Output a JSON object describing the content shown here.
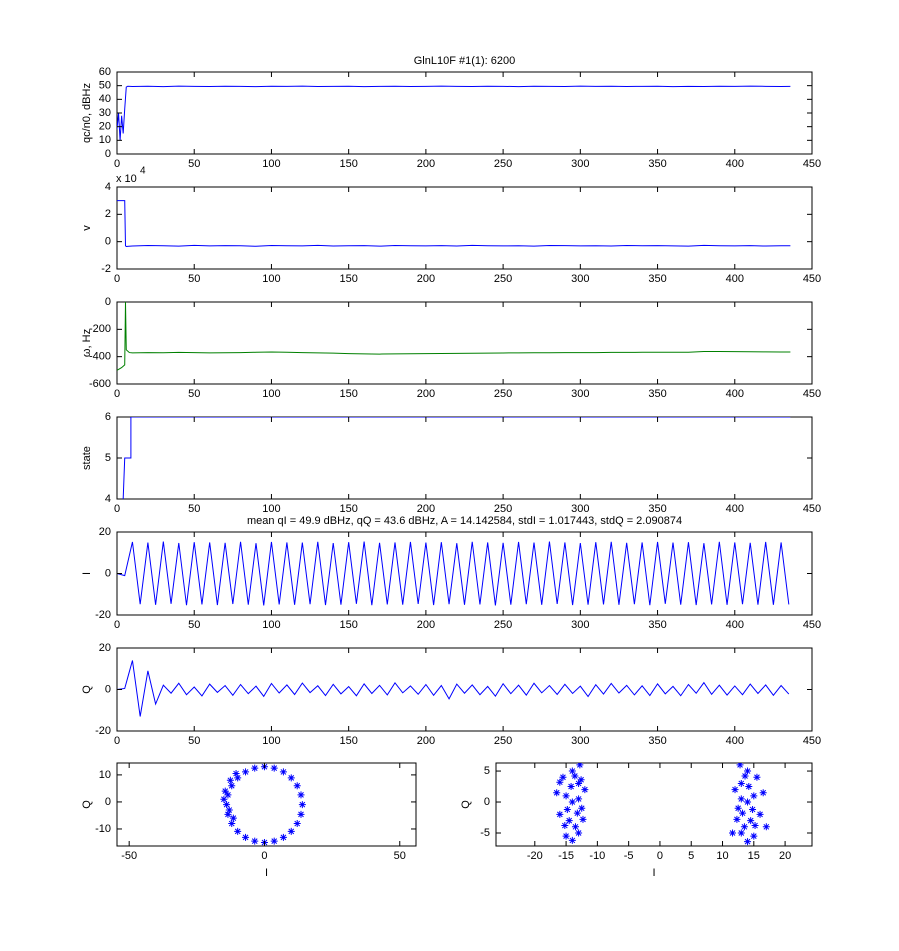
{
  "chart_data": [
    {
      "type": "line",
      "title": "GlnL10F #1(1): 6200",
      "ylabel": "qc/n0, dBHz",
      "color": "#0000ff",
      "xlim": [
        0,
        450
      ],
      "ylim": [
        0,
        60
      ],
      "xticks": [
        0,
        50,
        100,
        150,
        200,
        250,
        300,
        350,
        400,
        450
      ],
      "yticks": [
        0,
        10,
        20,
        30,
        40,
        50,
        60
      ],
      "x": [
        0,
        1,
        2,
        3,
        4,
        5,
        6,
        7,
        10,
        20,
        30,
        40,
        50,
        60,
        70,
        80,
        90,
        100,
        110,
        120,
        130,
        140,
        150,
        160,
        170,
        180,
        190,
        200,
        210,
        220,
        230,
        240,
        250,
        260,
        270,
        280,
        290,
        300,
        310,
        320,
        330,
        340,
        350,
        360,
        370,
        380,
        390,
        400,
        410,
        420,
        430,
        436
      ],
      "values": [
        18,
        30,
        10,
        28,
        15,
        33,
        49,
        49.6,
        49.4,
        49.6,
        49.3,
        49.7,
        49.5,
        49.4,
        49.6,
        49.5,
        49.3,
        49.6,
        49.5,
        49.7,
        49.4,
        49.5,
        49.6,
        49.3,
        49.5,
        49.6,
        49.4,
        49.5,
        49.7,
        49.5,
        49.4,
        49.6,
        49.5,
        49.3,
        49.6,
        49.5,
        49.4,
        49.7,
        49.5,
        49.6,
        49.4,
        49.5,
        49.6,
        49.3,
        49.5,
        49.4,
        49.6,
        49.5,
        49.7,
        49.5,
        49.4,
        49.5
      ]
    },
    {
      "type": "line",
      "ylabel": "v",
      "exponent_label": "x 10",
      "exponent": "4",
      "color": "#0000ff",
      "xlim": [
        0,
        450
      ],
      "ylim": [
        -2,
        4
      ],
      "xticks": [
        0,
        50,
        100,
        150,
        200,
        250,
        300,
        350,
        400,
        450
      ],
      "yticks": [
        -2,
        0,
        2,
        4
      ],
      "x": [
        0,
        5,
        5.5,
        6,
        10,
        20,
        30,
        40,
        50,
        60,
        70,
        80,
        90,
        100,
        110,
        120,
        130,
        140,
        150,
        160,
        170,
        180,
        190,
        200,
        210,
        220,
        230,
        240,
        250,
        260,
        270,
        280,
        290,
        300,
        310,
        320,
        330,
        340,
        350,
        360,
        370,
        380,
        390,
        400,
        410,
        420,
        430,
        436
      ],
      "values": [
        3,
        3,
        -0.3,
        -0.35,
        -0.32,
        -0.28,
        -0.3,
        -0.33,
        -0.27,
        -0.31,
        -0.29,
        -0.3,
        -0.34,
        -0.28,
        -0.3,
        -0.31,
        -0.27,
        -0.32,
        -0.3,
        -0.29,
        -0.33,
        -0.28,
        -0.3,
        -0.31,
        -0.29,
        -0.32,
        -0.27,
        -0.3,
        -0.31,
        -0.3,
        -0.33,
        -0.28,
        -0.29,
        -0.31,
        -0.3,
        -0.32,
        -0.28,
        -0.3,
        -0.29,
        -0.31,
        -0.33,
        -0.27,
        -0.3,
        -0.31,
        -0.29,
        -0.32,
        -0.3,
        -0.3
      ]
    },
    {
      "type": "line",
      "ylabel": "ω, Hz",
      "color": "#008000",
      "xlim": [
        0,
        450
      ],
      "ylim": [
        -600,
        0
      ],
      "xticks": [
        0,
        50,
        100,
        150,
        200,
        250,
        300,
        350,
        400,
        450
      ],
      "yticks": [
        -600,
        -400,
        -200,
        0
      ],
      "x": [
        0,
        3,
        5,
        5.5,
        6,
        8,
        10,
        20,
        30,
        40,
        50,
        60,
        70,
        80,
        90,
        100,
        110,
        120,
        130,
        140,
        150,
        160,
        170,
        180,
        190,
        200,
        210,
        220,
        230,
        240,
        250,
        260,
        270,
        280,
        290,
        300,
        310,
        320,
        330,
        340,
        350,
        360,
        370,
        380,
        390,
        400,
        410,
        420,
        430,
        436
      ],
      "values": [
        -500,
        -480,
        -460,
        0,
        -350,
        -370,
        -372,
        -370,
        -371,
        -369,
        -370,
        -372,
        -371,
        -370,
        -368,
        -366,
        -368,
        -370,
        -372,
        -374,
        -378,
        -380,
        -381,
        -380,
        -379,
        -378,
        -377,
        -376,
        -375,
        -374,
        -373,
        -372,
        -371,
        -371,
        -370,
        -370,
        -370,
        -369,
        -369,
        -368,
        -368,
        -368,
        -368,
        -362,
        -362,
        -363,
        -364,
        -365,
        -366,
        -366
      ]
    },
    {
      "type": "line",
      "ylabel": "state",
      "color": "#0000ff",
      "xlim": [
        0,
        450
      ],
      "ylim": [
        4,
        6
      ],
      "xticks": [
        0,
        50,
        100,
        150,
        200,
        250,
        300,
        350,
        400,
        450
      ],
      "yticks": [
        4,
        5,
        6
      ],
      "x": [
        4,
        5,
        9,
        9,
        436
      ],
      "values": [
        4,
        5,
        5,
        6,
        6
      ]
    },
    {
      "type": "line",
      "title": "mean qI = 49.9 dBHz, qQ = 43.6 dBHz, A = 14.142584, stdI = 1.017443, stdQ = 2.090874",
      "ylabel": "I",
      "color": "#0000ff",
      "xlim": [
        0,
        450
      ],
      "ylim": [
        -20,
        20
      ],
      "xticks": [
        0,
        50,
        100,
        150,
        200,
        250,
        300,
        350,
        400,
        450
      ],
      "yticks": [
        -20,
        0,
        20
      ],
      "x": [
        0,
        5,
        10,
        15,
        20,
        25,
        30,
        35,
        40,
        45,
        50,
        55,
        60,
        65,
        70,
        75,
        80,
        85,
        90,
        95,
        100,
        105,
        110,
        115,
        120,
        125,
        130,
        135,
        140,
        145,
        150,
        155,
        160,
        165,
        170,
        175,
        180,
        185,
        190,
        195,
        200,
        205,
        210,
        215,
        220,
        225,
        230,
        235,
        240,
        245,
        250,
        255,
        260,
        265,
        270,
        275,
        280,
        285,
        290,
        295,
        300,
        305,
        310,
        315,
        320,
        325,
        330,
        335,
        340,
        345,
        350,
        355,
        360,
        365,
        370,
        375,
        380,
        385,
        390,
        395,
        400,
        405,
        410,
        415,
        420,
        425,
        430,
        435
      ],
      "values": [
        0,
        -1,
        15.2,
        -14.8,
        14.9,
        -15.1,
        15.4,
        -14.6,
        14.7,
        -15.3,
        15.1,
        -14.9,
        15,
        -15.2,
        14.8,
        -14.7,
        15.3,
        -15,
        14.6,
        -15.4,
        15.2,
        -14.9,
        15,
        -15.1,
        14.9,
        -14.8,
        15.3,
        -15.2,
        14.7,
        -15,
        15.1,
        -14.6,
        15.4,
        -15.3,
        14.8,
        -14.9,
        15,
        -15,
        15.2,
        -14.7,
        14.9,
        -15.2,
        15.1,
        -14.8,
        14.6,
        -15.1,
        15.3,
        -14.9,
        15,
        -15.4,
        14.8,
        -15,
        15.2,
        -14.8,
        14.9,
        -15.1,
        15.4,
        -14.7,
        15,
        -15.2,
        14.7,
        -15,
        15.1,
        -14.9,
        15.3,
        -15.1,
        14.8,
        -14.8,
        15,
        -15.3,
        15.2,
        -14.6,
        14.9,
        -15,
        15.1,
        -15.2,
        14.6,
        -14.9,
        15.3,
        -15.1,
        15,
        -14.8,
        14.8,
        -15,
        15.2,
        -15.1,
        15,
        -14.9
      ]
    },
    {
      "type": "line",
      "ylabel": "Q",
      "color": "#0000ff",
      "xlim": [
        0,
        450
      ],
      "ylim": [
        -20,
        20
      ],
      "xticks": [
        0,
        50,
        100,
        150,
        200,
        250,
        300,
        350,
        400,
        450
      ],
      "yticks": [
        -20,
        0,
        20
      ],
      "x": [
        0,
        5,
        10,
        15,
        20,
        25,
        30,
        35,
        40,
        45,
        50,
        55,
        60,
        65,
        70,
        75,
        80,
        85,
        90,
        95,
        100,
        105,
        110,
        115,
        120,
        125,
        130,
        135,
        140,
        145,
        150,
        155,
        160,
        165,
        170,
        175,
        180,
        185,
        190,
        195,
        200,
        205,
        210,
        215,
        220,
        225,
        230,
        235,
        240,
        245,
        250,
        255,
        260,
        265,
        270,
        275,
        280,
        285,
        290,
        295,
        300,
        305,
        310,
        315,
        320,
        325,
        330,
        335,
        340,
        345,
        350,
        355,
        360,
        365,
        370,
        375,
        380,
        385,
        390,
        395,
        400,
        405,
        410,
        415,
        420,
        425,
        430,
        435
      ],
      "values": [
        0,
        0.5,
        14,
        -13,
        9,
        -7,
        2.1,
        -1.8,
        3,
        -2.5,
        1.2,
        -3.1,
        2.6,
        -1.4,
        1.9,
        -2.8,
        2.4,
        -2,
        1.6,
        -3.3,
        2.9,
        -1.7,
        2.2,
        -2.4,
        3.1,
        -1.5,
        1.8,
        -2.9,
        2.5,
        -2.1,
        1.4,
        -3,
        2.7,
        -1.9,
        2,
        -2.6,
        3.2,
        -1.6,
        1.7,
        -2.3,
        2.4,
        -2.8,
        1.9,
        -4.5,
        2.6,
        -1.8,
        2.2,
        -2.5,
        1.5,
        -3.2,
        2.8,
        -2,
        2.1,
        -2.7,
        3,
        -1.6,
        1.9,
        -2.4,
        2.5,
        -1.9,
        1.6,
        -3.4,
        2.3,
        -2.2,
        2.9,
        -1.7,
        2,
        -2.6,
        1.8,
        -2.9,
        2.7,
        -2.1,
        1.5,
        -3,
        2.4,
        -1.8,
        3.3,
        -2.3,
        2.1,
        -2.7,
        1.7,
        -2.5,
        2.6,
        -1.9,
        2.2,
        -2.8,
        1.9,
        -2.2
      ]
    },
    {
      "type": "scatter",
      "xlabel": "I",
      "ylabel": "Q",
      "color": "#0000ff",
      "xlim": [
        -54.5,
        56
      ],
      "ylim": [
        -16.3,
        14.4
      ],
      "xticks": [
        -50,
        0,
        50
      ],
      "yticks": [
        -10,
        0,
        10
      ],
      "x": [
        14,
        13.5,
        12.1,
        9.9,
        7,
        3.6,
        0,
        -3.6,
        -7,
        -9.9,
        -12.1,
        -13.5,
        -14,
        -13.5,
        -12.1,
        -9.9,
        -7,
        -3.6,
        0,
        3.6,
        7,
        9.9,
        12.1,
        13.5,
        -14.5,
        -13,
        -12.6,
        -15,
        -10.5,
        -11.5
      ],
      "values": [
        -1,
        2.6,
        6,
        8.9,
        11.1,
        12.5,
        13,
        12.5,
        11.1,
        8.9,
        6,
        2.6,
        -1,
        -4.6,
        -8,
        -10.9,
        -13.1,
        -14.5,
        -15,
        -14.5,
        -13.1,
        -10.9,
        -8,
        -4.6,
        4,
        -3,
        8,
        1,
        10.5,
        -6
      ]
    },
    {
      "type": "scatter",
      "xlabel": "I",
      "ylabel": "Q",
      "color": "#0000ff",
      "xlim": [
        -26.2,
        24.3
      ],
      "ylim": [
        -7.1,
        6.3
      ],
      "xticks": [
        -20,
        -15,
        -10,
        -5,
        0,
        5,
        10,
        15,
        20
      ],
      "yticks": [
        -5,
        0,
        5
      ],
      "x": [
        -14,
        -13,
        -15,
        -12.5,
        -14.5,
        -13,
        -15.5,
        -12,
        -14,
        -16,
        -13.5,
        -12.8,
        -15,
        -14.2,
        -13,
        -16.5,
        -12.3,
        -14.8,
        -13.6,
        -15.2,
        -12.6,
        -14,
        -16,
        -13.2,
        14,
        13,
        15,
        12.5,
        14.5,
        13,
        15.5,
        12,
        14,
        16,
        13.5,
        12.8,
        15,
        14.2,
        13,
        16.5,
        12.3,
        14.8,
        13.6,
        15.2,
        17,
        14,
        11.6,
        13.2
      ],
      "values": [
        5,
        3,
        1,
        -1,
        -3,
        -5,
        4,
        2,
        0,
        -2,
        -4,
        6,
        -5.5,
        2.5,
        0.5,
        1.5,
        -2.8,
        -1.2,
        4.2,
        -3.8,
        3.6,
        -6.2,
        3.2,
        -1.8,
        5,
        3,
        1,
        -1,
        -3,
        -5,
        4,
        2,
        0,
        -2,
        -4,
        6,
        -5.5,
        2.5,
        0.5,
        1.5,
        -2.8,
        -1.2,
        4.2,
        -3.8,
        -4,
        -6.4,
        -5,
        -1.8
      ]
    }
  ]
}
